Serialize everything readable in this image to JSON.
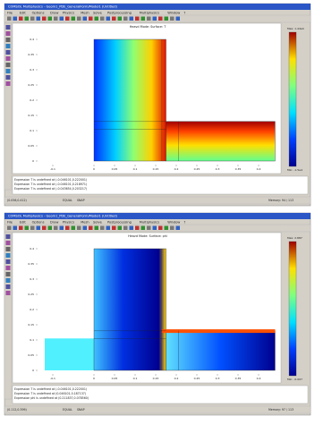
{
  "windows": [
    {
      "title": "COMSOL Multiphysics - Geom1_PDE_GeneralForm/Model1 (Untitled)",
      "menu": [
        "File",
        "Edit",
        "Options",
        "Draw",
        "Physics",
        "Mesh",
        "Solve",
        "Postprocessing",
        "Multiphysics",
        "Window",
        "?"
      ],
      "plot_title": "Heavd Mode: Surface: T",
      "xlim": [
        -0.15,
        0.45
      ],
      "xticks": [
        -0.1,
        0,
        0.05,
        0.1,
        0.15,
        0.2,
        0.25,
        0.3,
        0.35,
        0.4
      ],
      "ylim": [
        -0.02,
        0.43
      ],
      "yticks": [
        0.4,
        0.35,
        0.3,
        0.25,
        0.2,
        0.15,
        0.1,
        0.05,
        0
      ],
      "max_label": "Max: 1.44e4",
      "min_label": "Min: -1.5e4",
      "log": [
        "Expression T is undefined at (-0.046101,0.222001)",
        "Expression T is undefined at (-0.046101,0.218971)",
        "Expression T is undefined at (-0.043654,0.203217)"
      ],
      "status": [
        "(0.056,0.412)",
        "EQUAL",
        "SNAP",
        "Memory: 94 / 113"
      ]
    },
    {
      "title": "COMSOL Multiphysics - Geom1_PDE_GeneralForm/Model1 (Untitled)",
      "menu": [
        "File",
        "Edit",
        "Options",
        "Draw",
        "Physics",
        "Mesh",
        "Solve",
        "Postprocessing",
        "Multiphysics",
        "Window",
        "?"
      ],
      "plot_title": "Heavd Mode: Surface: phi",
      "xlim": [
        -0.15,
        0.45
      ],
      "xticks": [
        -0.1,
        0,
        0.05,
        0.1,
        0.15,
        0.2,
        0.25,
        0.3,
        0.35,
        0.4
      ],
      "ylim": [
        -0.02,
        0.43
      ],
      "yticks": [
        0.4,
        0.35,
        0.3,
        0.25,
        0.2,
        0.15,
        0.1,
        0.05,
        0
      ],
      "max_label": "Max: 2.887",
      "min_label": "Min: -0.007",
      "log": [
        "Expression T is undefined at (-0.046101,0.222001)",
        "Expression T is undefined at (0.046101,0.187137)",
        "Expression phi is undefined at (0.211837,0.078560)"
      ],
      "status": [
        "(0.112,0.399)",
        "EQUAL",
        "SNAP",
        "Memory: 97 / 113"
      ]
    }
  ]
}
